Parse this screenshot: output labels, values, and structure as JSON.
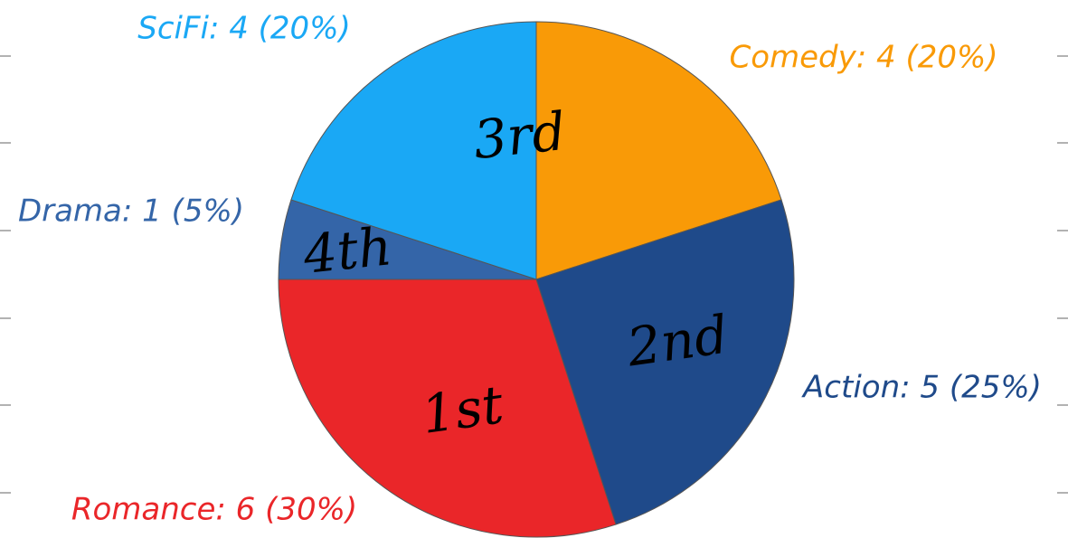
{
  "chart_data": {
    "type": "pie",
    "labels": [
      "Comedy: 4 (20%)",
      "Action: 5 (25%)",
      "Romance: 6 (30%)",
      "Drama: 1 (5%)",
      "SciFi: 4 (20%)"
    ],
    "values": [
      4,
      5,
      6,
      1,
      4
    ],
    "colors": [
      "#f99a07",
      "#1f4a8a",
      "#ea2629",
      "#3465a8",
      "#1aa8f5"
    ],
    "annotations": [
      "2nd",
      "1st",
      "4th",
      "3rd"
    ]
  }
}
